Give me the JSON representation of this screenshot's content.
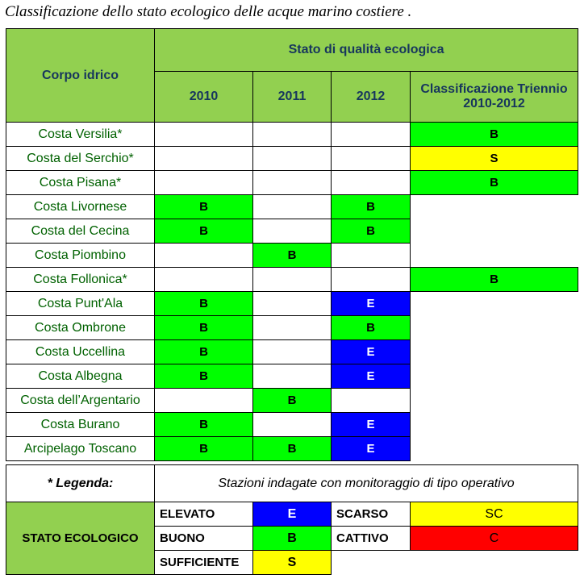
{
  "caption": "Classificazione dello stato ecologico delle acque marino costiere .",
  "colors": {
    "header_green": "#92d050",
    "E": "#0000ff",
    "B": "#00ff00",
    "S": "#ffff00",
    "SC": "#ffff00",
    "C": "#ff0000",
    "blank": "#ffffff"
  },
  "table": {
    "header_corpo": "Corpo idrico",
    "header_stato": "Stato di qualità ecologica",
    "year_2010": "2010",
    "year_2011": "2011",
    "year_2012": "2012",
    "header_class": "Classificazione Triennio 2010-2012",
    "rows": [
      {
        "name": "Costa Versilia*",
        "y2010": "",
        "y2011": "",
        "y2012": "",
        "triennio": "B"
      },
      {
        "name": "Costa del Serchio*",
        "y2010": "",
        "y2011": "",
        "y2012": "",
        "triennio": "S"
      },
      {
        "name": "Costa Pisana*",
        "y2010": "",
        "y2011": "",
        "y2012": "",
        "triennio": "B"
      },
      {
        "name": "Costa Livornese",
        "y2010": "B",
        "y2011": "",
        "y2012": "B",
        "triennio": ""
      },
      {
        "name": "Costa del Cecina",
        "y2010": "B",
        "y2011": "",
        "y2012": "B",
        "triennio": ""
      },
      {
        "name": "Costa Piombino",
        "y2010": "",
        "y2011": "B",
        "y2012": "",
        "triennio": ""
      },
      {
        "name": "Costa Follonica*",
        "y2010": "",
        "y2011": "",
        "y2012": "",
        "triennio": "B"
      },
      {
        "name": "Costa Punt'Ala",
        "y2010": "B",
        "y2011": "",
        "y2012": "E",
        "triennio": ""
      },
      {
        "name": "Costa Ombrone",
        "y2010": "B",
        "y2011": "",
        "y2012": "B",
        "triennio": ""
      },
      {
        "name": "Costa Uccellina",
        "y2010": "B",
        "y2011": "",
        "y2012": "E",
        "triennio": ""
      },
      {
        "name": "Costa Albegna",
        "y2010": "B",
        "y2011": "",
        "y2012": "E",
        "triennio": ""
      },
      {
        "name": "Costa dell’Argentario",
        "y2010": "",
        "y2011": "B",
        "y2012": "",
        "triennio": ""
      },
      {
        "name": "Costa Burano",
        "y2010": "B",
        "y2011": "",
        "y2012": "E",
        "triennio": ""
      },
      {
        "name": "Arcipelago Toscano",
        "y2010": "B",
        "y2011": "B",
        "y2012": "E",
        "triennio": ""
      }
    ]
  },
  "legend": {
    "title": "* Legenda:",
    "description": "Stazioni indagate con monitoraggio di tipo operativo",
    "stato_label": "STATO ECOLOGICO",
    "elevato": "ELEVATO",
    "code_E": "E",
    "scarso": "SCARSO",
    "code_SC": "SC",
    "buono": "BUONO",
    "code_B": "B",
    "cattivo": "CATTIVO",
    "code_C": "C",
    "sufficiente": "SUFFICIENTE",
    "code_S": "S"
  }
}
